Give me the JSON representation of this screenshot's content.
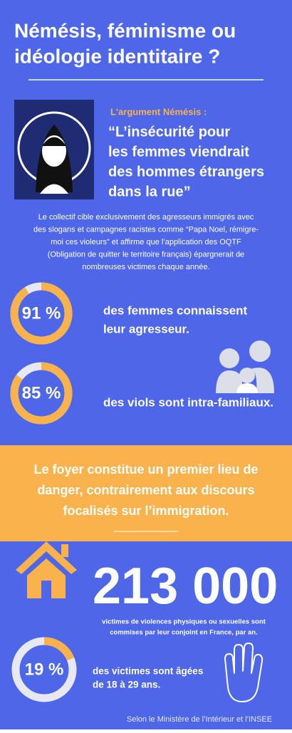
{
  "header": {
    "title": [
      "Némésis, féminisme ou",
      "idéologie identitaire ?"
    ]
  },
  "argument": {
    "label": "L'argument Némésis :",
    "quote": [
      "“L’insécurité pour",
      "les femmes viendrait",
      "des hommes étrangers",
      "dans la rue”"
    ],
    "description": [
      "Le collectif cible exclusivement des agresseurs immigrés avec",
      "des slogans et campagnes racistes comme “Papa Noel, rémigre-",
      "moi ces violeurs” et affirme que l’application des OQTF",
      "(Obligation de quitter le territoire français) épargnerait de",
      "nombreuses victimes chaque année."
    ]
  },
  "stats": [
    {
      "value": 91,
      "label": "91 %",
      "text": [
        "des femmes connaissent",
        "leur agresseur."
      ]
    },
    {
      "value": 85,
      "label": "85 %",
      "text": [
        "des viols sont intra-familiaux."
      ]
    }
  ],
  "banner": [
    "Le foyer constitue un premier lieu de",
    "danger, contrairement aux discours",
    "focalisés sur l’immigration."
  ],
  "victims": {
    "label": "213 000",
    "text": [
      "victimes de violences physiques ou sexuelles sont",
      "commises par leur conjoint en France, par an."
    ]
  },
  "age": {
    "value": 19,
    "label": "19 %",
    "text": [
      "des victimes sont âgées",
      "de 18 à 29 ans."
    ]
  },
  "source": "Selon le Ministère de l’Intérieur et l’INSEE"
}
